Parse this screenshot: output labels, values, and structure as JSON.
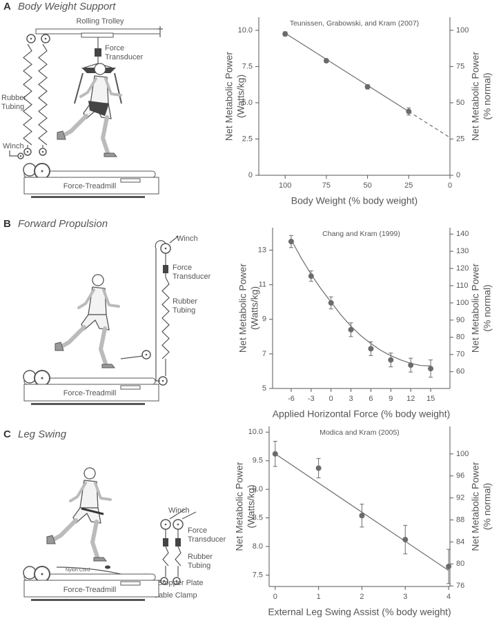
{
  "panels": [
    {
      "letter": "A",
      "title": "Body Weight Support",
      "labels": [
        [
          "Rolling Trolley"
        ],
        [
          "Force",
          "Transducer"
        ],
        [
          "Rubber",
          "Tubing"
        ],
        [
          "Winch"
        ],
        [
          "Force-Treadmill"
        ]
      ]
    },
    {
      "letter": "B",
      "title": "Forward Propulsion",
      "labels": [
        [
          "Winch"
        ],
        [
          "Force",
          "Transducer"
        ],
        [
          "Rubber",
          "Tubing"
        ],
        [
          "Force-Treadmill"
        ]
      ]
    },
    {
      "letter": "C",
      "title": "Leg Swing",
      "labels": [
        [
          "Winch"
        ],
        [
          "Force",
          "Transducer"
        ],
        [
          "Rubber",
          "Tubing"
        ],
        [
          "Nylon Cord"
        ],
        [
          "Stopper Plate"
        ],
        [
          "Cable Clamp"
        ],
        [
          "Force-Treadmill"
        ]
      ]
    }
  ],
  "chart_data": [
    {
      "type": "scatter",
      "annotation": "Teunissen, Grabowski, and Kram (2007)",
      "x_label": "Body Weight (% body weight)",
      "y_label": [
        "Net Metabolic Power",
        "(Watts/kg)"
      ],
      "y2_label": [
        "Net Metabolic Power",
        "(% normal)"
      ],
      "xlim": [
        116,
        0
      ],
      "xticks": [
        100,
        75,
        50,
        25,
        0
      ],
      "ylim": [
        0,
        10.9
      ],
      "yticks": [
        0,
        2.5,
        {
          "value": 5,
          "label": "5.0"
        },
        7.5,
        {
          "value": 10,
          "label": "10.0"
        }
      ],
      "y2lim": [
        0,
        109
      ],
      "y2ticks": [
        0,
        25,
        50,
        75,
        100
      ],
      "series": [
        {
          "style": "points",
          "color": "#6b6b6b",
          "x": [
            100,
            75,
            50,
            25
          ],
          "values": [
            9.75,
            7.9,
            6.1,
            4.4
          ],
          "errors": [
            0.15,
            0.12,
            0.15,
            0.25
          ]
        },
        {
          "style": "solid",
          "color": "#6b6b6b",
          "x": [
            100,
            25
          ],
          "values": [
            9.8,
            4.4
          ]
        },
        {
          "style": "dashed",
          "color": "#6b6b6b",
          "x": [
            25,
            0
          ],
          "values": [
            4.4,
            2.6
          ]
        }
      ]
    },
    {
      "type": "scatter",
      "annotation": "Chang and Kram (1999)",
      "x_label": "Applied Horizontal Force (% body weight)",
      "y_label": [
        "Net Metabolic Power",
        "(Watts/kg)"
      ],
      "y2_label": [
        "Net Metabolic Power",
        "(% normal)"
      ],
      "xlim": [
        -8.8,
        17.9
      ],
      "xticks": [
        -6,
        -3,
        0,
        3,
        6,
        9,
        12,
        15
      ],
      "ylim": [
        5,
        14.3
      ],
      "yticks": [
        5,
        7,
        9,
        11,
        13
      ],
      "y2lim": [
        50.25,
        143.7
      ],
      "y2ticks": [
        60,
        70,
        80,
        90,
        100,
        110,
        120,
        130,
        140
      ],
      "series": [
        {
          "style": "points",
          "color": "#6b6b6b",
          "x": [
            -6,
            -3,
            0,
            3,
            6,
            9,
            12,
            15
          ],
          "values": [
            13.5,
            11.5,
            9.95,
            8.4,
            7.3,
            6.65,
            6.35,
            6.15
          ],
          "errors": [
            0.35,
            0.3,
            0.35,
            0.4,
            0.4,
            0.4,
            0.4,
            0.5
          ]
        },
        {
          "style": "solid",
          "color": "#6b6b6b",
          "x": [
            -6,
            -4.5,
            -3,
            -1.5,
            0,
            1.5,
            3,
            4.5,
            6,
            7.5,
            9,
            10.5,
            12,
            13.5,
            15
          ],
          "values": [
            13.6,
            12.55,
            11.6,
            10.75,
            10.0,
            9.25,
            8.6,
            8.05,
            7.6,
            7.2,
            6.9,
            6.65,
            6.45,
            6.33,
            6.3
          ]
        }
      ]
    },
    {
      "type": "scatter",
      "annotation": "Modica and Kram (2005)",
      "x_label": "External Leg Swing Assist (% body weight)",
      "y_label": [
        "Net Metabolic Power",
        "(Watts/kg)"
      ],
      "y2_label": [
        "Net Metabolic Power",
        "(% normal)"
      ],
      "xlim": [
        -0.14,
        4.03
      ],
      "xticks": [
        0,
        1,
        2,
        3,
        4
      ],
      "ylim": [
        7.3,
        10.1
      ],
      "yticks": [
        7.5,
        {
          "value": 8,
          "label": "8.0"
        },
        8.5,
        {
          "value": 9,
          "label": "9.0"
        },
        9.5,
        {
          "value": 10,
          "label": "10.0"
        }
      ],
      "y2lim": [
        75.9,
        105
      ],
      "y2ticks": [
        76,
        80,
        84,
        88,
        92,
        96,
        100
      ],
      "series": [
        {
          "style": "points",
          "color": "#6b6b6b",
          "x": [
            0,
            1,
            2,
            3,
            4
          ],
          "values": [
            9.62,
            9.37,
            8.54,
            8.12,
            7.65
          ],
          "errors": [
            0.22,
            0.17,
            0.2,
            0.25,
            0.3
          ]
        },
        {
          "style": "solid",
          "color": "#6b6b6b",
          "x": [
            0,
            4
          ],
          "values": [
            9.62,
            7.58
          ]
        }
      ]
    }
  ]
}
